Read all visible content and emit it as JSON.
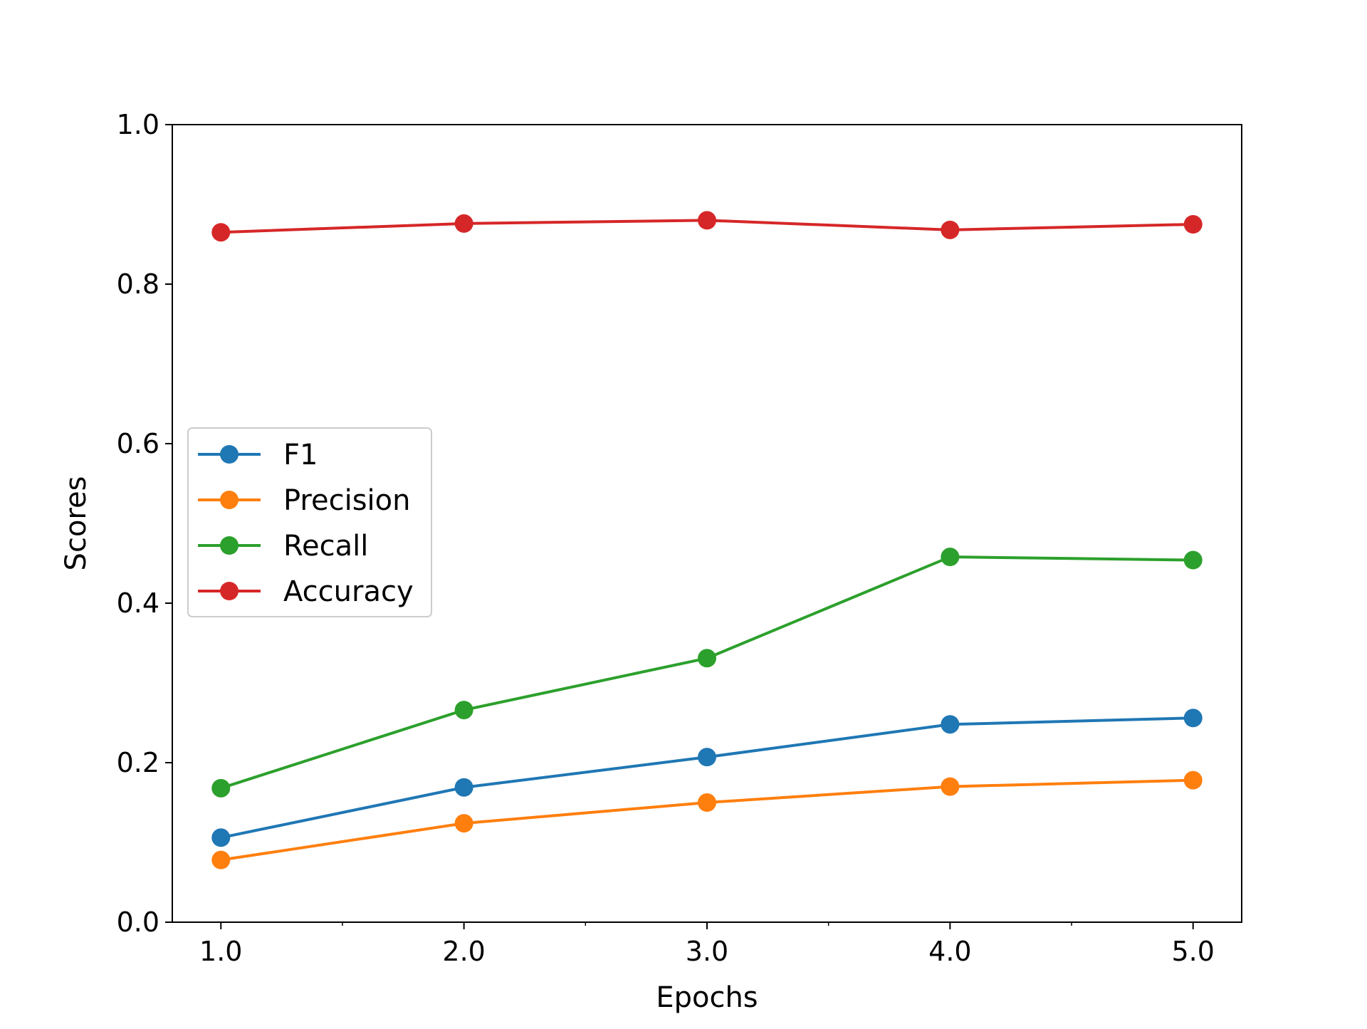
{
  "chart_data": {
    "type": "line",
    "title": "",
    "xlabel": "Epochs",
    "ylabel": "Scores",
    "x": [
      1.0,
      2.0,
      3.0,
      4.0,
      5.0
    ],
    "x_tick_labels": [
      "1.0",
      "2.0",
      "3.0",
      "4.0",
      "5.0"
    ],
    "y_tick_labels": [
      "0.0",
      "0.2",
      "0.4",
      "0.6",
      "0.8",
      "1.0"
    ],
    "xlim": [
      0.8,
      5.2
    ],
    "ylim": [
      0.0,
      1.0
    ],
    "grid": false,
    "legend_placement": "center-left",
    "series": [
      {
        "name": "F1",
        "color": "#1f77b4",
        "values": [
          0.106,
          0.169,
          0.207,
          0.248,
          0.256
        ]
      },
      {
        "name": "Precision",
        "color": "#ff7f0e",
        "values": [
          0.078,
          0.124,
          0.15,
          0.17,
          0.178
        ]
      },
      {
        "name": "Recall",
        "color": "#2ca02c",
        "values": [
          0.168,
          0.266,
          0.331,
          0.458,
          0.454
        ]
      },
      {
        "name": "Accuracy",
        "color": "#d62728",
        "values": [
          0.865,
          0.876,
          0.88,
          0.868,
          0.875
        ]
      }
    ]
  }
}
